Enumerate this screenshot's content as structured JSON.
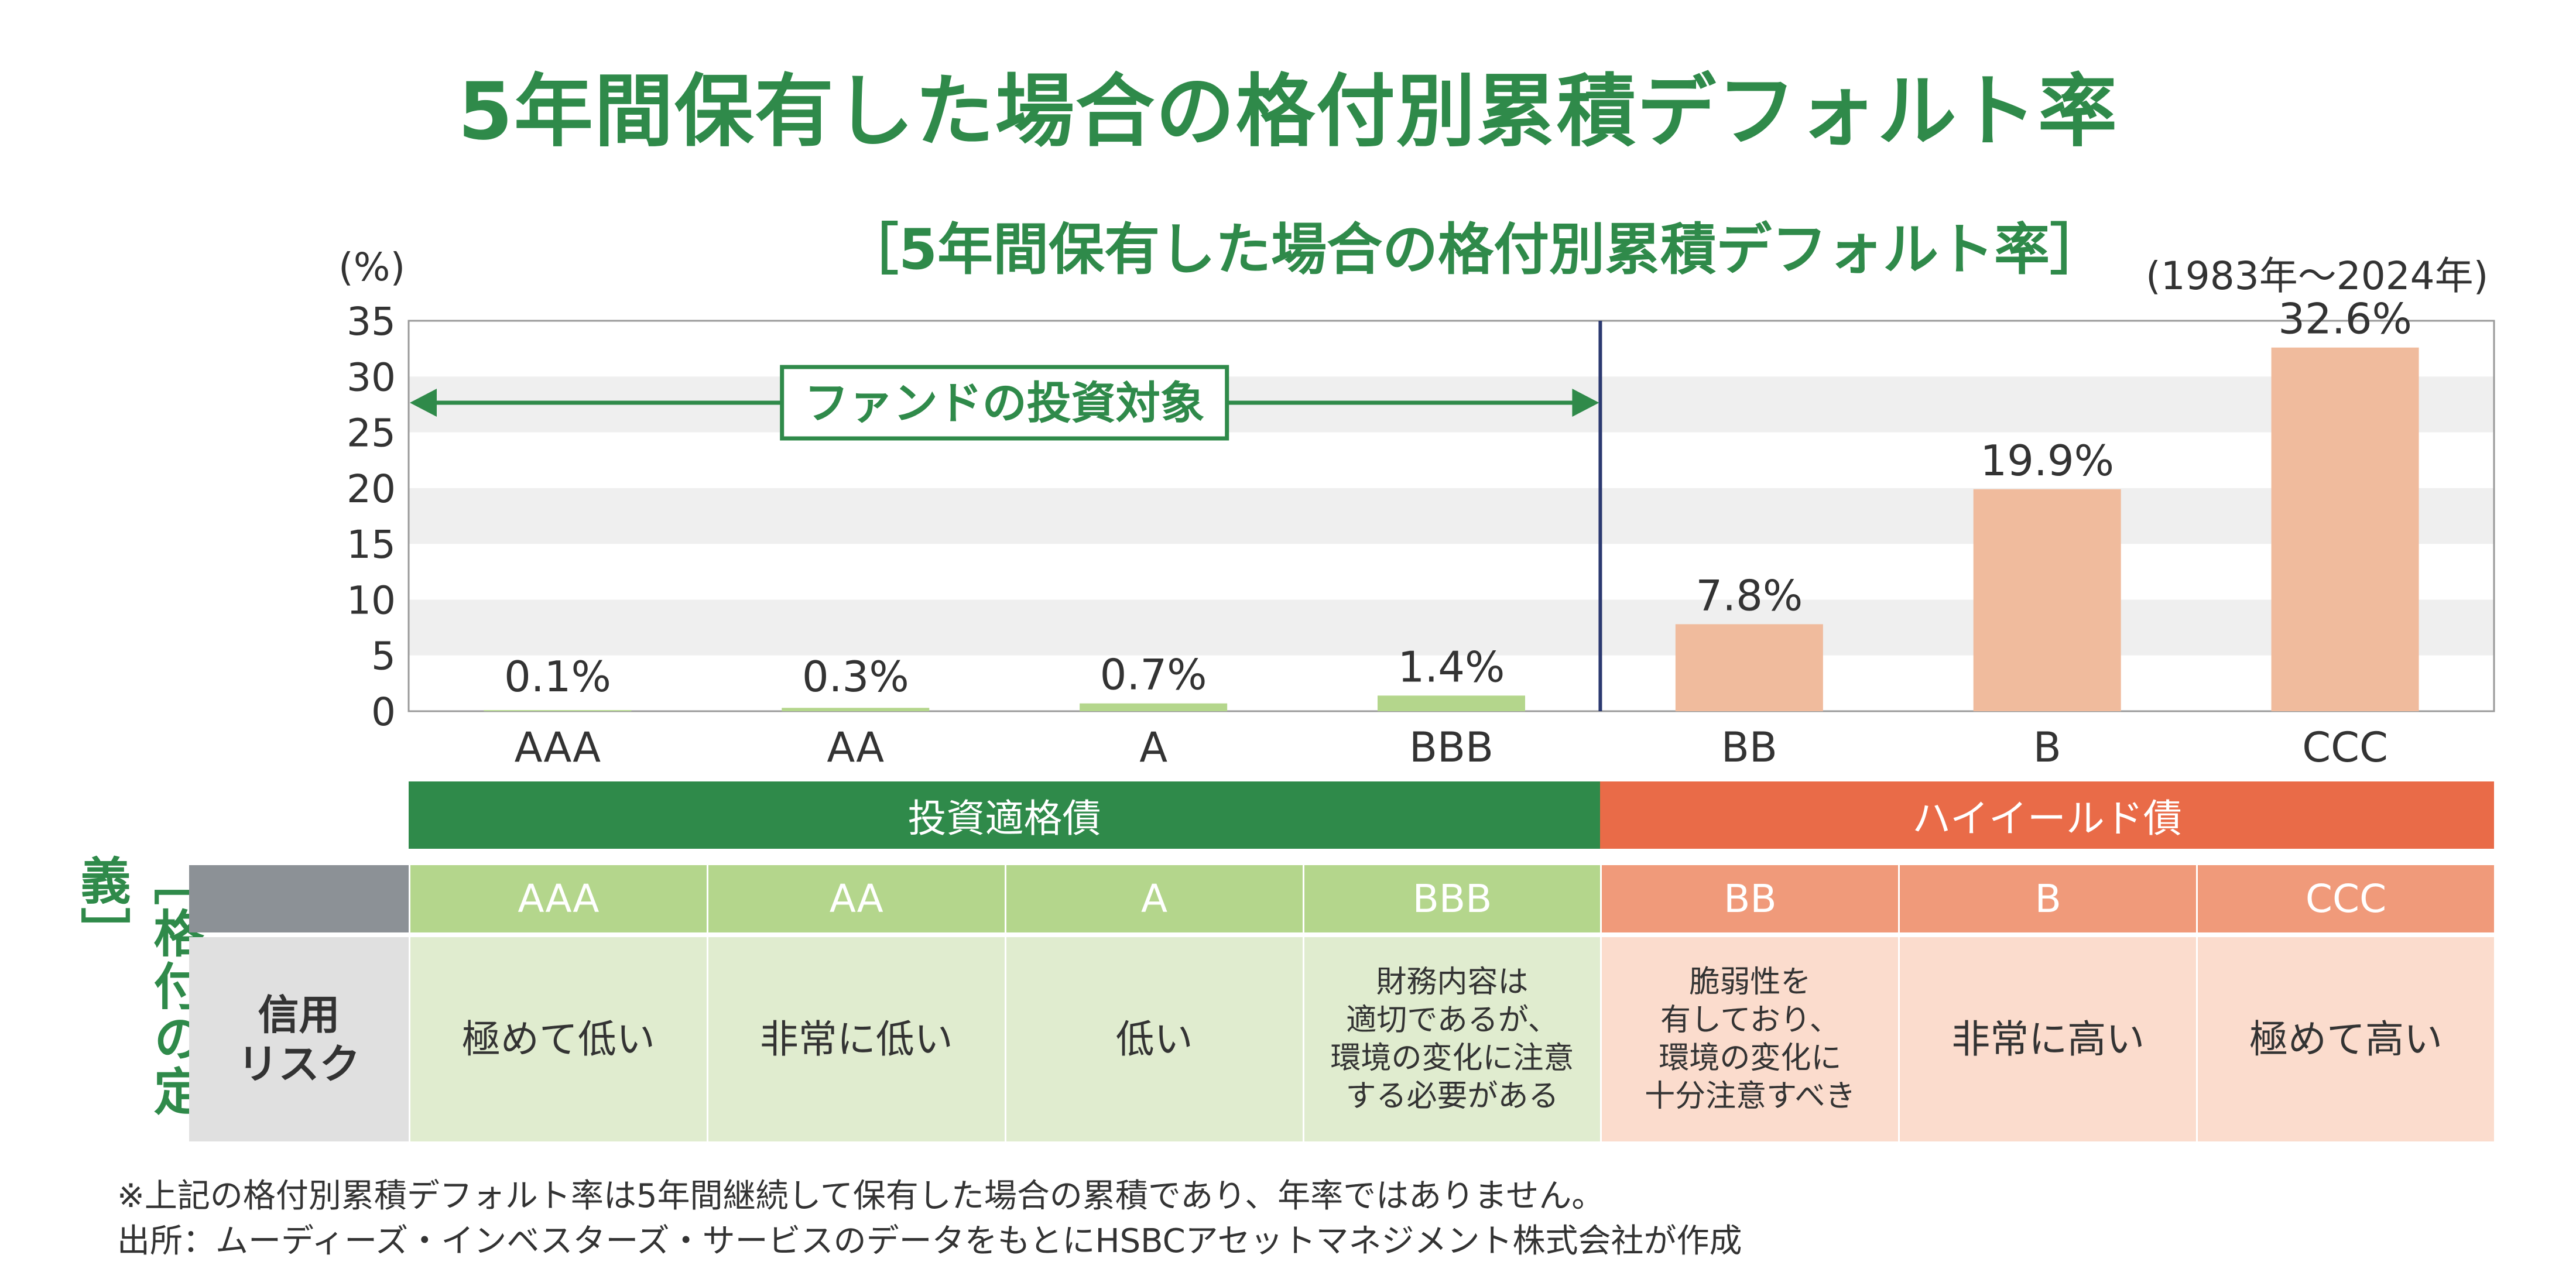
{
  "main_title": "5年間保有した場合の格付別累積デフォルト率",
  "chart_title": "［5年間保有した場合の格付別累積デフォルト率］",
  "period": "(1983年～2024年)",
  "colors": {
    "green": "#2f8a4a",
    "light_green": "#b4d68c",
    "pale_green": "#e0eccf",
    "orange": "#e96b48",
    "salmon": "#f09a7a",
    "pale_salmon": "#fbdccd",
    "bar_peach": "#f0bb9d",
    "navy": "#2b3970",
    "gray": "#8c9196",
    "light_gray": "#e0e0e0"
  },
  "chart_data": {
    "type": "bar",
    "categories": [
      "AAA",
      "AA",
      "A",
      "BBB",
      "BB",
      "B",
      "CCC"
    ],
    "values": [
      0.1,
      0.3,
      0.7,
      1.4,
      7.8,
      19.9,
      32.6
    ],
    "data_labels": [
      "0.1%",
      "0.3%",
      "0.7%",
      "1.4%",
      "7.8%",
      "19.9%",
      "32.6%"
    ],
    "ylabel": "(%)",
    "ylim": [
      0,
      35
    ],
    "yticks": [
      0,
      5,
      10,
      15,
      20,
      25,
      30,
      35
    ],
    "bar_colors": [
      "#b4d68c",
      "#b4d68c",
      "#b4d68c",
      "#b4d68c",
      "#f0bb9d",
      "#f0bb9d",
      "#f0bb9d"
    ],
    "grid": true,
    "annotation": "ファンドの投資対象"
  },
  "bands": {
    "investment_grade": "投資適格債",
    "high_yield": "ハイイールド債"
  },
  "definition_table": {
    "side_label": "［格付の定義］",
    "row_header": "信用\nリスク",
    "ratings": [
      "AAA",
      "AA",
      "A",
      "BBB",
      "BB",
      "B",
      "CCC"
    ],
    "risk": [
      "極めて低い",
      "非常に低い",
      "低い",
      "財務内容は\n適切であるが、\n環境の変化に注意\nする必要がある",
      "脆弱性を\n有しており、\n環境の変化に\n十分注意すべき",
      "非常に高い",
      "極めて高い"
    ]
  },
  "notes": [
    "※上記の格付別累積デフォルト率は5年間継続して保有した場合の累積であり、年率ではありません。",
    "出所：ムーディーズ・インベスターズ・サービスのデータをもとにHSBCアセットマネジメント株式会社が作成"
  ]
}
